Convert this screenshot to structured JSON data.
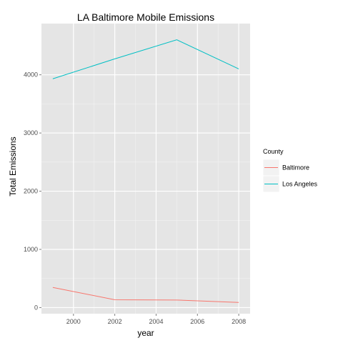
{
  "chart_data": {
    "type": "line",
    "title": "LA Baltimore Mobile Emissions",
    "xlabel": "year",
    "ylabel": "Total Emissions",
    "x": [
      1999,
      2002,
      2005,
      2008
    ],
    "xlim": [
      1998.45,
      2008.55
    ],
    "ylim": [
      -105,
      4880
    ],
    "x_ticks": [
      2000,
      2002,
      2004,
      2006,
      2008
    ],
    "y_ticks": [
      0,
      1000,
      2000,
      3000,
      4000
    ],
    "x_tick_labels": [
      "2000",
      "2002",
      "2004",
      "2006",
      "2008"
    ],
    "y_tick_labels": [
      "0",
      "1000",
      "2000",
      "3000",
      "4000"
    ],
    "grid": true,
    "legend": {
      "title": "County",
      "placement": "right"
    },
    "series": [
      {
        "name": "Baltimore",
        "color": "#F8766D",
        "values": [
          346.8,
          134.3,
          130.4,
          88.3
        ]
      },
      {
        "name": "Los Angeles",
        "color": "#00BFC4",
        "values": [
          3931.1,
          4274.0,
          4601.4,
          4101.3
        ]
      }
    ]
  }
}
